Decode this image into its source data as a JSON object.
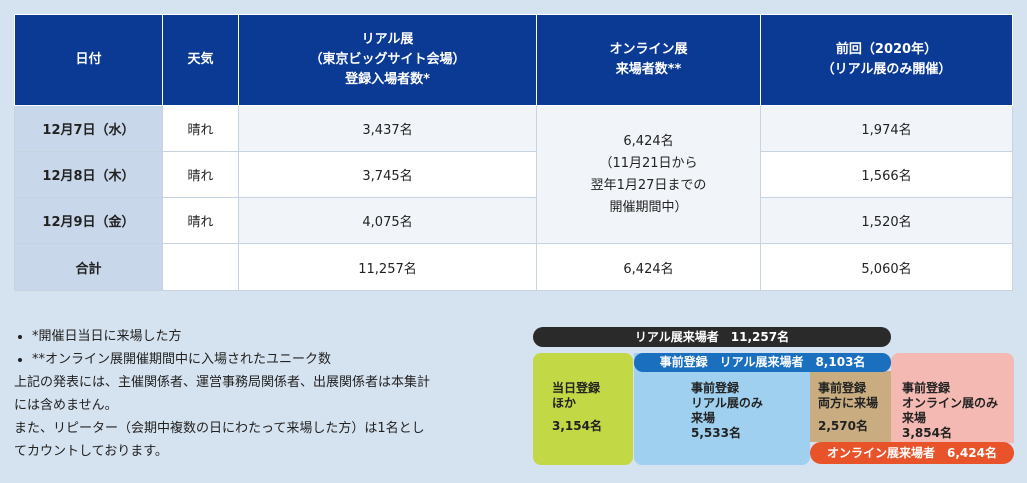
{
  "table": {
    "headers": {
      "date": "日付",
      "weather": "天気",
      "real": [
        "リアル展",
        "（東京ビッグサイト会場）",
        "登録入場者数*"
      ],
      "online": [
        "オンライン展",
        "来場者数**"
      ],
      "prev": [
        "前回（2020年）",
        "（リアル展のみ開催）"
      ]
    },
    "rows": [
      {
        "date": "12月7日（水）",
        "weather": "晴れ",
        "real": "3,437名",
        "prev": "1,974名"
      },
      {
        "date": "12月8日（木）",
        "weather": "晴れ",
        "real": "3,745名",
        "prev": "1,566名"
      },
      {
        "date": "12月9日（金）",
        "weather": "晴れ",
        "real": "4,075名",
        "prev": "1,520名"
      }
    ],
    "online_merged": [
      "6,424名",
      "（11月21日から",
      "翌年1月27日までの",
      "開催期間中）"
    ],
    "total": {
      "label": "合計",
      "weather": "",
      "real": "11,257名",
      "online": "6,424名",
      "prev": "5,060名"
    }
  },
  "notes": {
    "bullets": [
      "*開催日当日に来場した方",
      "**オンライン展開催期間中に入場されたユニーク数"
    ],
    "p1": [
      "上記の発表には、主催関係者、運営事務局関係者、出展関係者は本集計",
      "には含めません。"
    ],
    "p2": [
      "また、リピーター（会期中複数の日にわたって来場した方）は1名とし",
      "てカウントしております。"
    ]
  },
  "diagram": {
    "real_bar": "リアル展来場者　11,257名",
    "pre_bar": "事前登録　リアル展来場者　8,103名",
    "online_bar": "オンライン展来場者　6,424名",
    "green": {
      "lines": [
        "当日登録",
        "ほか"
      ],
      "value": "3,154名"
    },
    "blue": {
      "lines": [
        "事前登録",
        "リアル展のみ",
        "来場"
      ],
      "value": "5,533名"
    },
    "tan": {
      "lines": [
        "事前登録",
        "両方に来場"
      ],
      "value": "2,570名"
    },
    "pink": {
      "lines": [
        "事前登録",
        "オンライン展のみ",
        "来場"
      ],
      "value": "3,854名"
    },
    "colors": {
      "green": "#c3d845",
      "blue": "#9fd0ef",
      "tan": "#c9ad80",
      "pink": "#f4b9b2",
      "pre": "#1a6fbf",
      "online": "#e8532a",
      "real": "#2a2a2a"
    }
  }
}
